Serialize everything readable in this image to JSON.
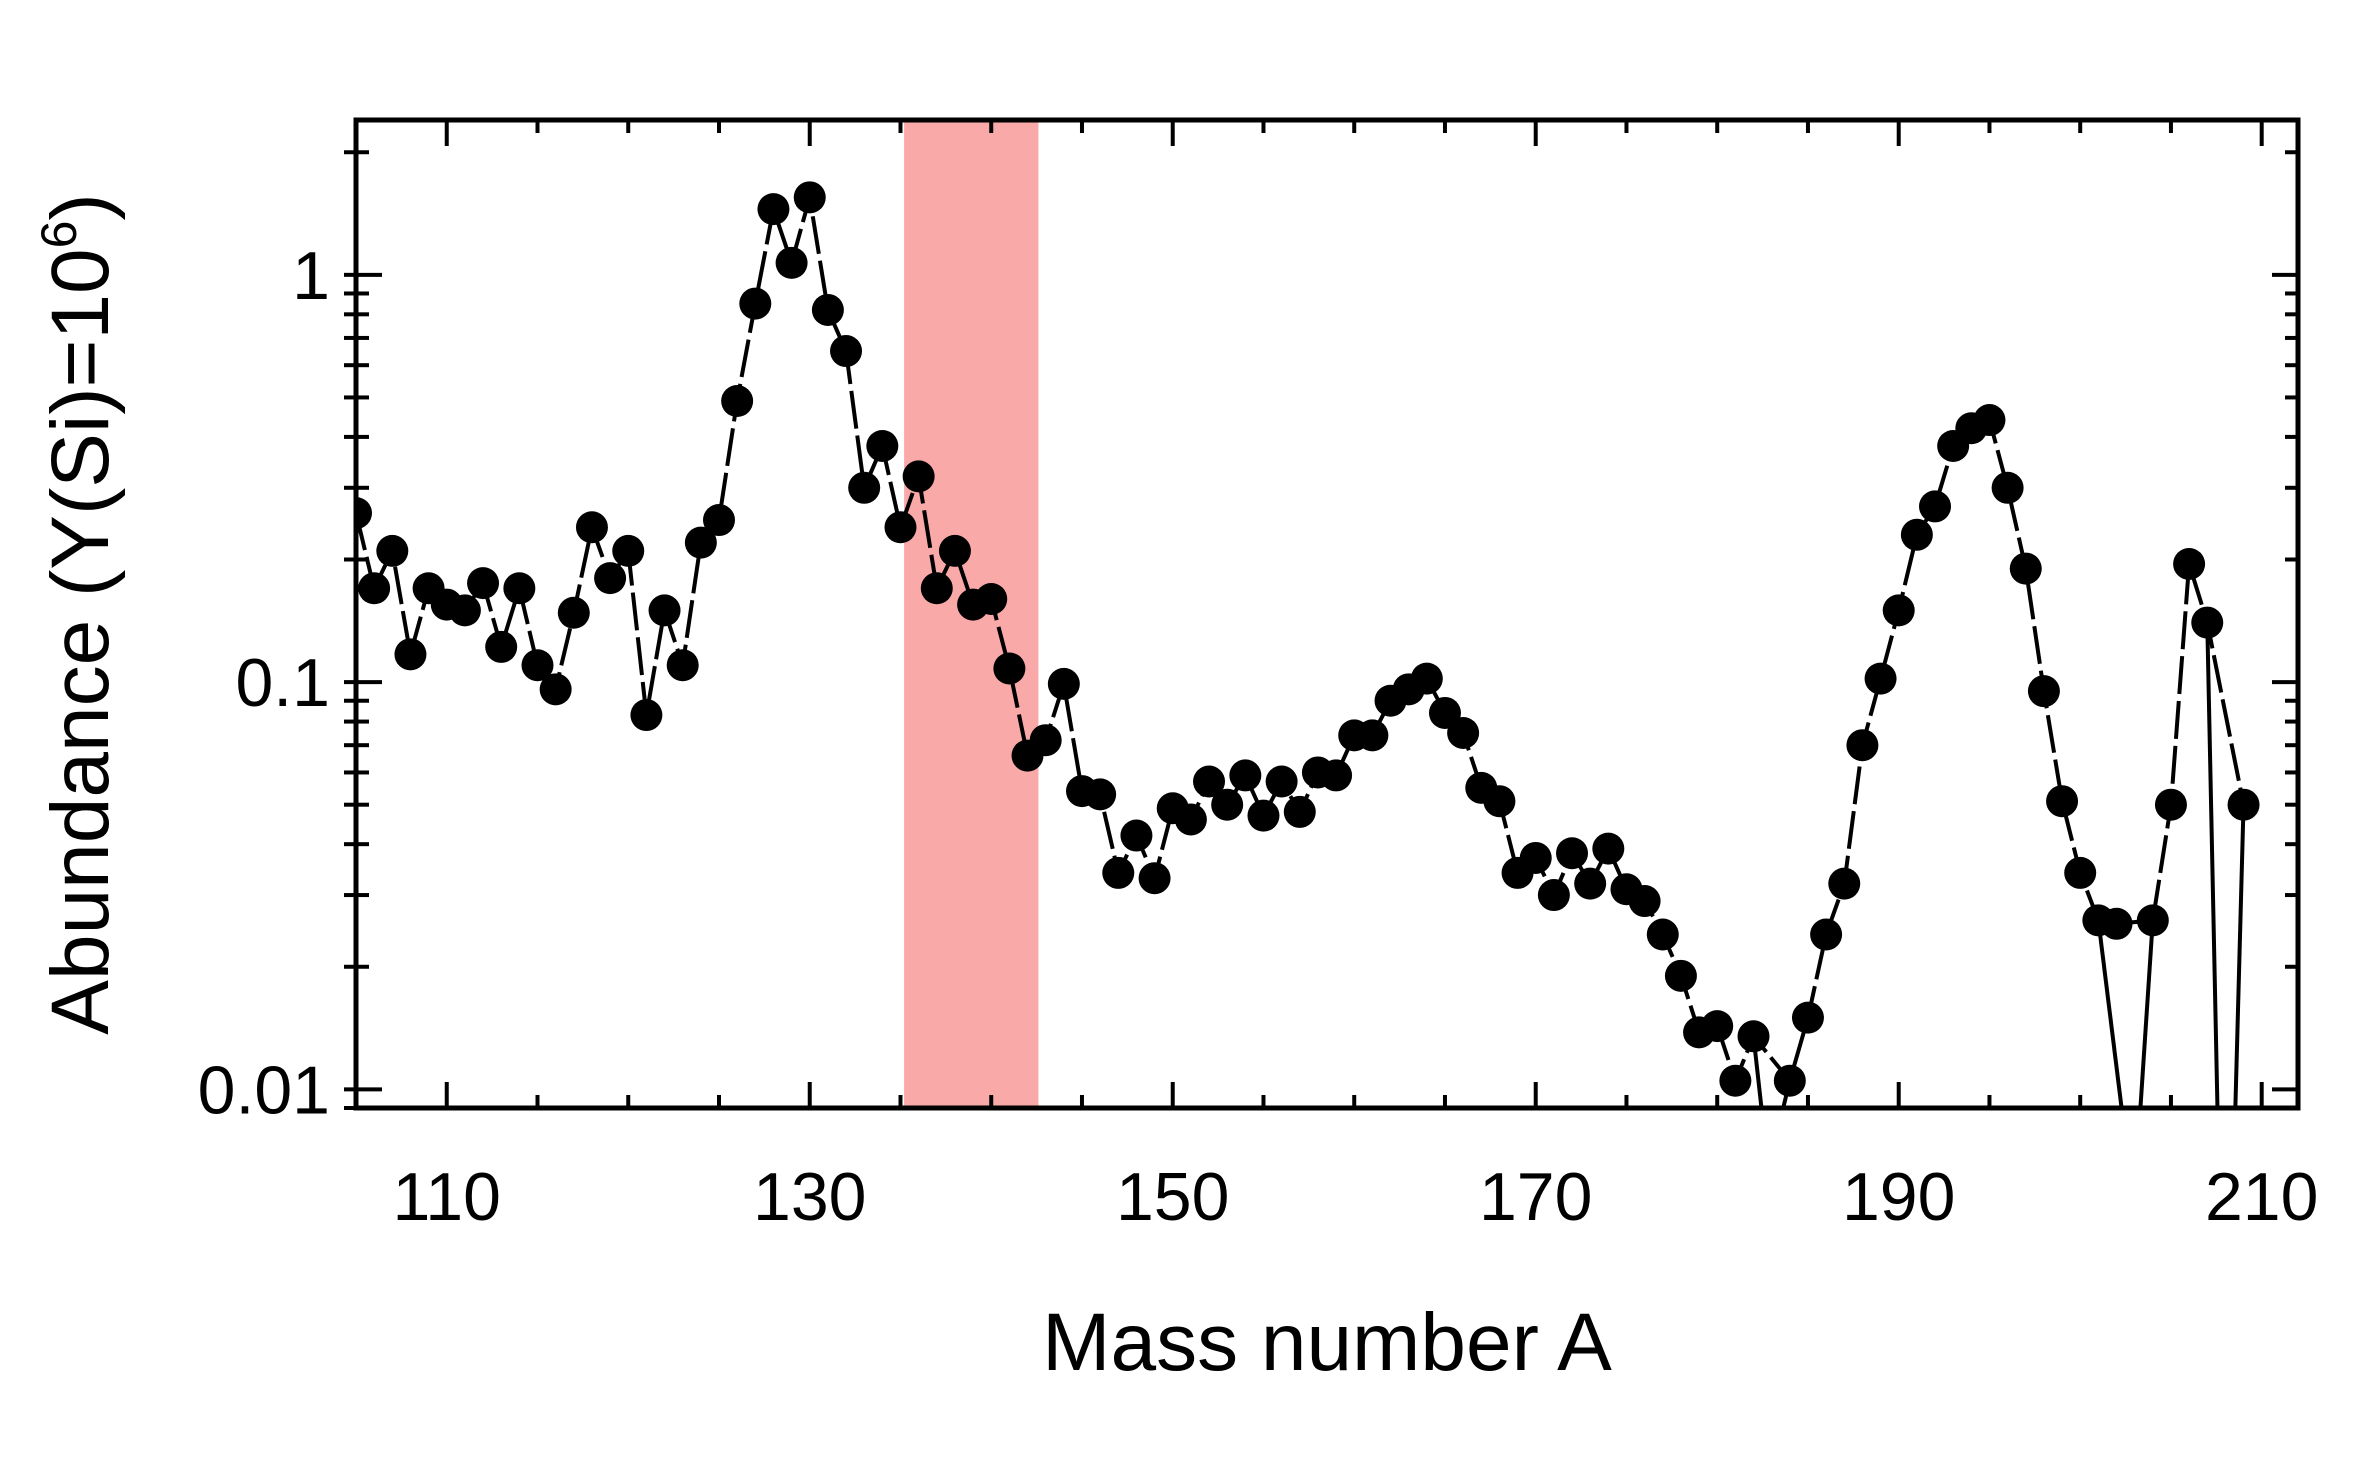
{
  "chart_data": {
    "type": "line",
    "xlabel": "Mass number A",
    "ylabel": "Abundance (Y(Si)=10",
    "ylabel_superscript": "6",
    "ylabel_suffix": ")",
    "xlim": [
      105,
      212
    ],
    "ylim": [
      0.009,
      2.4
    ],
    "yscale": "log",
    "xticks": [
      110,
      130,
      150,
      170,
      190,
      210
    ],
    "xtick_labels": [
      "110",
      "130",
      "150",
      "170",
      "190",
      "210"
    ],
    "yticks": [
      0.01,
      0.1,
      1
    ],
    "ytick_labels": [
      "0.01",
      "0.1",
      "1"
    ],
    "highlight_band": {
      "x0": 135.2,
      "x1": 142.6,
      "color": "#f77b7b",
      "opacity": 0.65
    },
    "series": [
      {
        "name": "Abundance",
        "color": "#000000",
        "marker": "circle",
        "x": [
          105,
          106,
          107,
          108,
          109,
          110,
          111,
          112,
          113,
          114,
          115,
          116,
          117,
          118,
          119,
          120,
          121,
          122,
          123,
          124,
          125,
          126,
          127,
          128,
          129,
          130,
          131,
          132,
          133,
          134,
          135,
          136,
          137,
          138,
          139,
          140,
          141,
          142,
          143,
          144,
          145,
          146,
          147,
          148,
          149,
          150,
          151,
          152,
          153,
          154,
          155,
          156,
          157,
          158,
          159,
          160,
          161,
          162,
          163,
          164,
          165,
          166,
          167,
          168,
          169,
          170,
          171,
          172,
          173,
          174,
          175,
          176,
          177,
          178,
          179,
          180,
          181,
          182,
          184,
          185,
          186,
          187,
          188,
          189,
          190,
          191,
          192,
          193,
          194,
          195,
          196,
          197,
          198,
          199,
          200,
          201,
          202,
          204,
          205,
          206,
          207,
          209
        ],
        "values": [
          0.26,
          0.17,
          0.21,
          0.117,
          0.17,
          0.155,
          0.15,
          0.175,
          0.122,
          0.17,
          0.11,
          0.096,
          0.148,
          0.24,
          0.18,
          0.21,
          0.083,
          0.15,
          0.11,
          0.22,
          0.25,
          0.49,
          0.85,
          1.45,
          1.07,
          1.55,
          0.82,
          0.65,
          0.3,
          0.38,
          0.24,
          0.32,
          0.17,
          0.21,
          0.155,
          0.16,
          0.108,
          0.066,
          0.072,
          0.099,
          0.054,
          0.053,
          0.034,
          0.042,
          0.033,
          0.049,
          0.046,
          0.057,
          0.05,
          0.059,
          0.047,
          0.057,
          0.048,
          0.06,
          0.059,
          0.074,
          0.074,
          0.09,
          0.096,
          0.102,
          0.084,
          0.075,
          0.055,
          0.051,
          0.034,
          0.037,
          0.03,
          0.038,
          0.032,
          0.039,
          0.031,
          0.029,
          0.024,
          0.019,
          0.0138,
          0.0143,
          0.0105,
          0.0135,
          0.0105,
          0.015,
          0.024,
          0.032,
          0.07,
          0.102,
          0.15,
          0.23,
          0.27,
          0.38,
          0.42,
          0.44,
          0.3,
          0.19,
          0.095,
          0.051,
          0.034,
          0.026,
          0.0255,
          0.026,
          0.05,
          0.195,
          0.14,
          0.05
        ]
      }
    ],
    "line_segments": [
      {
        "from": [
          201,
          0.026
        ],
        "to": [
          202.5,
          0.0075
        ]
      },
      {
        "from": [
          203.2,
          0.0075
        ],
        "to": [
          204,
          0.026
        ]
      },
      {
        "from": [
          207,
          0.14
        ],
        "to": [
          207.6,
          0.0075
        ]
      },
      {
        "from": [
          208.5,
          0.0075
        ],
        "to": [
          209,
          0.05
        ]
      },
      {
        "from": [
          182,
          0.0135
        ],
        "to": [
          182.5,
          0.0085
        ]
      },
      {
        "from": [
          183.5,
          0.0085
        ],
        "to": [
          184,
          0.0105
        ]
      }
    ]
  }
}
